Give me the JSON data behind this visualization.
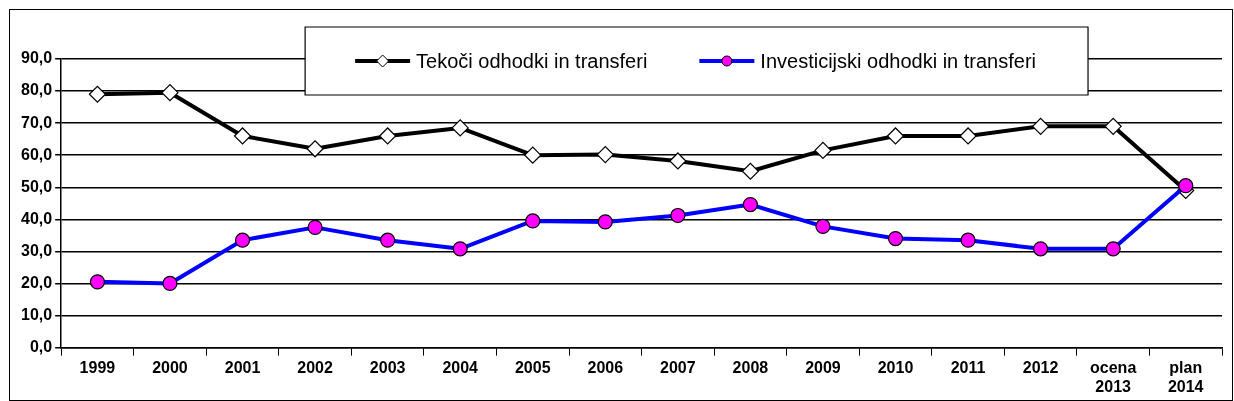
{
  "chart_data": {
    "type": "line",
    "categories": [
      "1999",
      "2000",
      "2001",
      "2002",
      "2003",
      "2004",
      "2005",
      "2006",
      "2007",
      "2008",
      "2009",
      "2010",
      "2011",
      "2012",
      "ocena 2013",
      "plan 2014"
    ],
    "series": [
      {
        "name": "Tekoči odhodki in transferi",
        "color": "#000000",
        "marker": "diamond",
        "values": [
          79.0,
          79.5,
          66.0,
          62.0,
          66.0,
          68.5,
          60.0,
          60.2,
          58.2,
          55.0,
          61.5,
          66.0,
          66.0,
          69.0,
          69.0,
          49.0
        ]
      },
      {
        "name": "Investicijski odhodki in transferi",
        "color": "#0000ff",
        "marker": "circle",
        "values": [
          20.5,
          20.0,
          33.5,
          37.5,
          33.5,
          30.8,
          39.5,
          39.2,
          41.2,
          44.6,
          37.8,
          34.0,
          33.5,
          30.8,
          30.8,
          50.5
        ]
      }
    ],
    "ylim": [
      0,
      90
    ],
    "yticks": [
      {
        "value": 0,
        "label": "0,0"
      },
      {
        "value": 10,
        "label": "10,0"
      },
      {
        "value": 20,
        "label": "20,0"
      },
      {
        "value": 30,
        "label": "30,0"
      },
      {
        "value": 40,
        "label": "40,0"
      },
      {
        "value": 50,
        "label": "50,0"
      },
      {
        "value": 60,
        "label": "60,0"
      },
      {
        "value": 70,
        "label": "70,0"
      },
      {
        "value": 80,
        "label": "80,0"
      },
      {
        "value": 90,
        "label": "90,0"
      }
    ],
    "grid": "y",
    "legend": "top"
  }
}
